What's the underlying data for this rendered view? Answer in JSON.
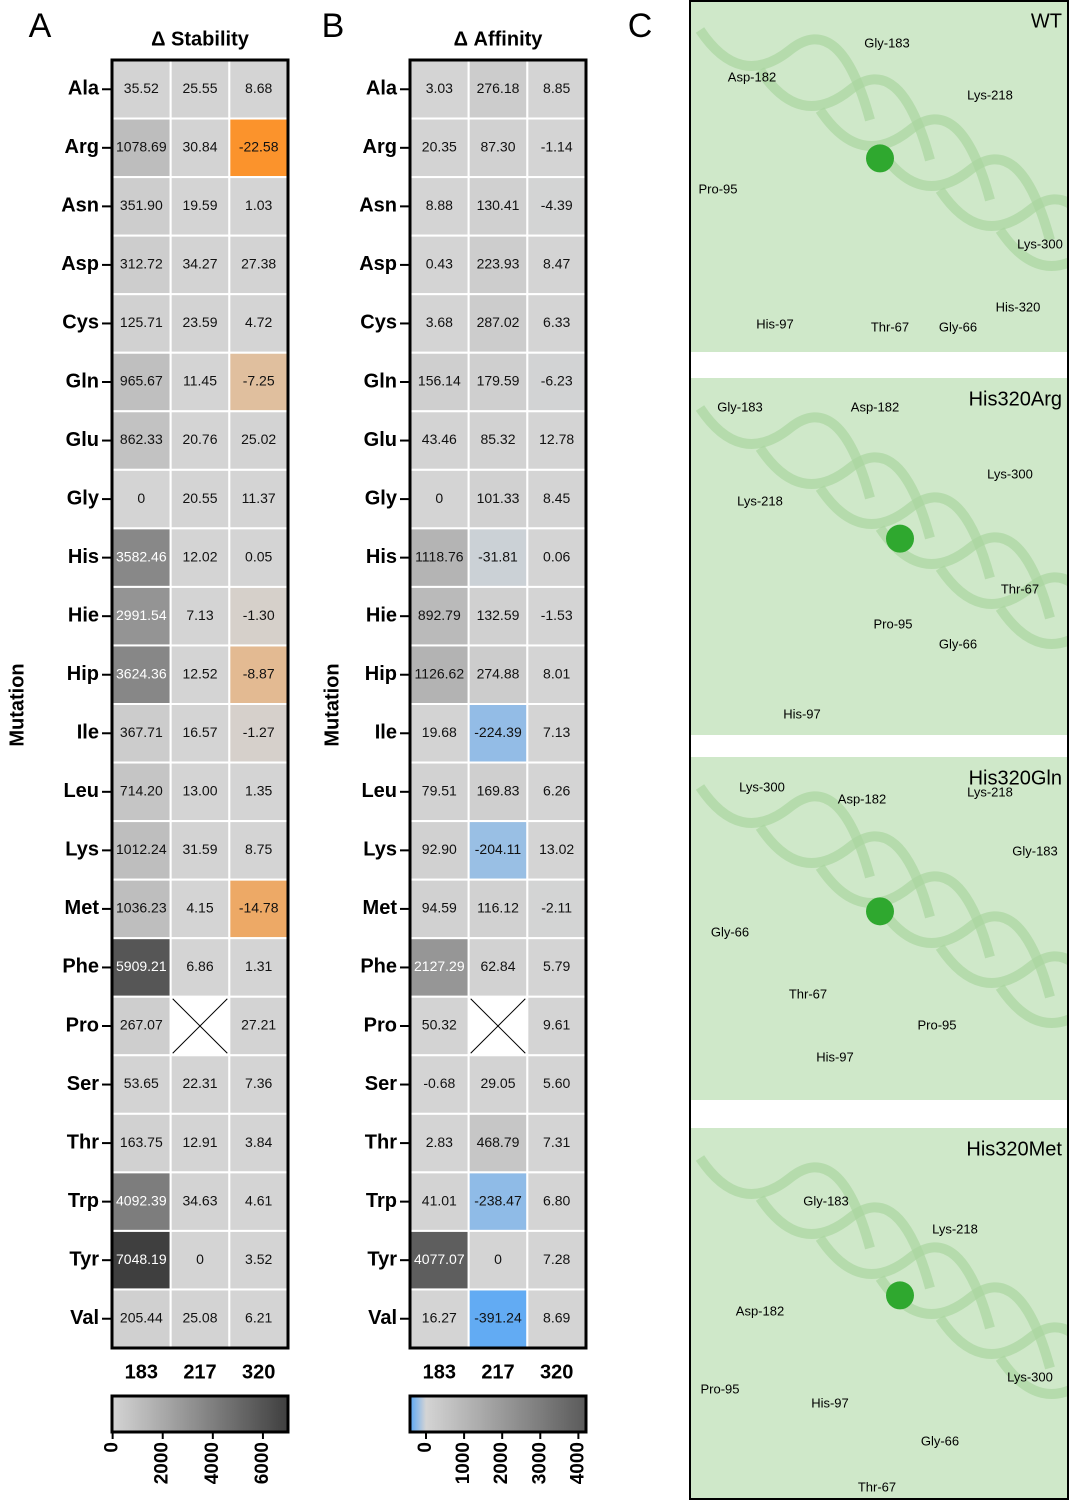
{
  "chart_data": [
    {
      "type": "heatmap",
      "panel_label": "A",
      "title": "Δ Stability",
      "y_label": "Mutation",
      "categories": [
        "Ala",
        "Arg",
        "Asn",
        "Asp",
        "Cys",
        "Gln",
        "Glu",
        "Gly",
        "His",
        "Hie",
        "Hip",
        "Ile",
        "Leu",
        "Lys",
        "Met",
        "Phe",
        "Pro",
        "Ser",
        "Thr",
        "Trp",
        "Tyr",
        "Val"
      ],
      "columns": [
        "183",
        "217",
        "320"
      ],
      "values": [
        [
          35.52,
          25.55,
          8.68
        ],
        [
          1078.69,
          30.84,
          -22.58
        ],
        [
          351.9,
          19.59,
          1.03
        ],
        [
          312.72,
          34.27,
          27.38
        ],
        [
          125.71,
          23.59,
          4.72
        ],
        [
          965.67,
          11.45,
          -7.25
        ],
        [
          862.33,
          20.76,
          25.02
        ],
        [
          0,
          20.55,
          11.37
        ],
        [
          3582.46,
          12.02,
          0.05
        ],
        [
          2991.54,
          7.13,
          -1.3
        ],
        [
          3624.36,
          12.52,
          -8.87
        ],
        [
          367.71,
          16.57,
          -1.27
        ],
        [
          714.2,
          13,
          1.35
        ],
        [
          1012.24,
          31.59,
          8.75
        ],
        [
          1036.23,
          4.15,
          -14.78
        ],
        [
          5909.21,
          6.86,
          1.31
        ],
        [
          267.07,
          null,
          27.21
        ],
        [
          53.65,
          22.31,
          7.36
        ],
        [
          163.75,
          12.91,
          3.84
        ],
        [
          4092.39,
          34.63,
          4.61
        ],
        [
          7048.19,
          0,
          3.52
        ],
        [
          205.44,
          25.08,
          6.21
        ]
      ],
      "value_labels": [
        [
          "35.52",
          "25.55",
          "8.68"
        ],
        [
          "1078.69",
          "30.84",
          "-22.58"
        ],
        [
          "351.90",
          "19.59",
          "1.03"
        ],
        [
          "312.72",
          "34.27",
          "27.38"
        ],
        [
          "125.71",
          "23.59",
          "4.72"
        ],
        [
          "965.67",
          "11.45",
          "-7.25"
        ],
        [
          "862.33",
          "20.76",
          "25.02"
        ],
        [
          "0",
          "20.55",
          "11.37"
        ],
        [
          "3582.46",
          "12.02",
          "0.05"
        ],
        [
          "2991.54",
          "7.13",
          "-1.30"
        ],
        [
          "3624.36",
          "12.52",
          "-8.87"
        ],
        [
          "367.71",
          "16.57",
          "-1.27"
        ],
        [
          "714.20",
          "13.00",
          "1.35"
        ],
        [
          "1012.24",
          "31.59",
          "8.75"
        ],
        [
          "1036.23",
          "4.15",
          "-14.78"
        ],
        [
          "5909.21",
          "6.86",
          "1.31"
        ],
        [
          "267.07",
          null,
          "27.21"
        ],
        [
          "53.65",
          "22.31",
          "7.36"
        ],
        [
          "163.75",
          "12.91",
          "3.84"
        ],
        [
          "4092.39",
          "34.63",
          "4.61"
        ],
        [
          "7048.19",
          "0",
          "3.52"
        ],
        [
          "205.44",
          "25.08",
          "6.21"
        ]
      ],
      "zlim": [
        -25,
        7000
      ],
      "zticks": [
        0,
        2000,
        4000,
        6000
      ],
      "colormap": {
        "negative": "#ff8c1a",
        "zero": "#d4d4d4",
        "max": "#3f3f3f"
      }
    },
    {
      "type": "heatmap",
      "panel_label": "B",
      "title": "Δ Affinity",
      "y_label": "Mutation",
      "categories": [
        "Ala",
        "Arg",
        "Asn",
        "Asp",
        "Cys",
        "Gln",
        "Glu",
        "Gly",
        "His",
        "Hie",
        "Hip",
        "Ile",
        "Leu",
        "Lys",
        "Met",
        "Phe",
        "Pro",
        "Ser",
        "Thr",
        "Trp",
        "Tyr",
        "Val"
      ],
      "columns": [
        "183",
        "217",
        "320"
      ],
      "values": [
        [
          3.03,
          276.18,
          8.85
        ],
        [
          20.35,
          87.3,
          -1.14
        ],
        [
          8.88,
          130.41,
          -4.39
        ],
        [
          0.43,
          223.93,
          8.47
        ],
        [
          3.68,
          287.02,
          6.33
        ],
        [
          156.14,
          179.59,
          -6.23
        ],
        [
          43.46,
          85.32,
          12.78
        ],
        [
          0,
          101.33,
          8.45
        ],
        [
          1118.76,
          -31.81,
          0.06
        ],
        [
          892.79,
          132.59,
          -1.53
        ],
        [
          1126.62,
          274.88,
          8.01
        ],
        [
          19.68,
          -224.39,
          7.13
        ],
        [
          79.51,
          169.83,
          6.26
        ],
        [
          92.9,
          -204.11,
          13.02
        ],
        [
          94.59,
          116.12,
          -2.11
        ],
        [
          2127.29,
          62.84,
          5.79
        ],
        [
          50.32,
          null,
          9.61
        ],
        [
          -0.68,
          29.05,
          5.6
        ],
        [
          2.83,
          468.79,
          7.31
        ],
        [
          41.01,
          -238.47,
          6.8
        ],
        [
          4077.07,
          0,
          7.28
        ],
        [
          16.27,
          -391.24,
          8.69
        ]
      ],
      "value_labels": [
        [
          "3.03",
          "276.18",
          "8.85"
        ],
        [
          "20.35",
          "87.30",
          "-1.14"
        ],
        [
          "8.88",
          "130.41",
          "-4.39"
        ],
        [
          "0.43",
          "223.93",
          "8.47"
        ],
        [
          "3.68",
          "287.02",
          "6.33"
        ],
        [
          "156.14",
          "179.59",
          "-6.23"
        ],
        [
          "43.46",
          "85.32",
          "12.78"
        ],
        [
          "0",
          "101.33",
          "8.45"
        ],
        [
          "1118.76",
          "-31.81",
          "0.06"
        ],
        [
          "892.79",
          "132.59",
          "-1.53"
        ],
        [
          "1126.62",
          "274.88",
          "8.01"
        ],
        [
          "19.68",
          "-224.39",
          "7.13"
        ],
        [
          "79.51",
          "169.83",
          "6.26"
        ],
        [
          "92.90",
          "-204.11",
          "13.02"
        ],
        [
          "94.59",
          "116.12",
          "-2.11"
        ],
        [
          "2127.29",
          "62.84",
          "5.79"
        ],
        [
          "50.32",
          null,
          "9.61"
        ],
        [
          "-0.68",
          "29.05",
          "5.60"
        ],
        [
          "2.83",
          "468.79",
          "7.31"
        ],
        [
          "41.01",
          "-238.47",
          "6.80"
        ],
        [
          "4077.07",
          "0",
          "7.28"
        ],
        [
          "16.27",
          "-391.24",
          "8.69"
        ]
      ],
      "zlim": [
        -420,
        4200
      ],
      "zticks": [
        0,
        1000,
        2000,
        3000,
        4000
      ],
      "colormap": {
        "negative": "#5aa8f5",
        "zero": "#d4d4d4",
        "max": "#5a5a5a"
      }
    }
  ],
  "panel_c": {
    "panel_label": "C",
    "structures": [
      {
        "title": "WT",
        "residues": [
          "Asp-182",
          "Gly-183",
          "Lys-218",
          "Pro-95",
          "Lys-300",
          "His-320",
          "His-97",
          "Thr-67",
          "Gly-66"
        ]
      },
      {
        "title": "His320Arg",
        "residues": [
          "Gly-183",
          "Asp-182",
          "Lys-300",
          "Lys-218",
          "Thr-67",
          "Pro-95",
          "Gly-66",
          "His-97"
        ]
      },
      {
        "title": "His320Gln",
        "residues": [
          "Lys-300",
          "Asp-182",
          "Lys-218",
          "Gly-183",
          "Gly-66",
          "Thr-67",
          "Pro-95",
          "His-97"
        ]
      },
      {
        "title": "His320Met",
        "residues": [
          "Gly-183",
          "Lys-218",
          "Asp-182",
          "Lys-300",
          "Pro-95",
          "His-97",
          "Gly-66",
          "Thr-67"
        ]
      }
    ]
  }
}
